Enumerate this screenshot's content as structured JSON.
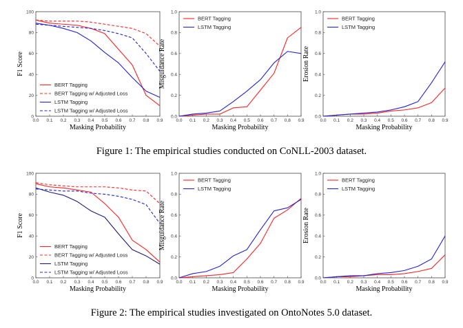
{
  "captions": [
    "Figure 1: The empirical studies conducted on CoNLL-2003 dataset.",
    "Figure 2: The empirical studies investigated on OntoNotes 5.0 dataset."
  ],
  "colors": {
    "bert": "#ff2020",
    "lstm": "#2020dd",
    "lstm_f2": "#1a1a7a"
  },
  "chart_data": [
    {
      "type": "line",
      "figure": 1,
      "panel": "f1",
      "xlabel": "Masking Probability",
      "ylabel": "F1 Score",
      "xlim": [
        0,
        0.9
      ],
      "ylim": [
        0,
        100
      ],
      "xticks": [
        0.0,
        0.1,
        0.2,
        0.3,
        0.4,
        0.5,
        0.6,
        0.7,
        0.8,
        0.9
      ],
      "yticks": [
        0,
        20,
        40,
        60,
        80,
        100
      ],
      "x": [
        0.0,
        0.1,
        0.2,
        0.3,
        0.4,
        0.5,
        0.6,
        0.7,
        0.8,
        0.9
      ],
      "legend": "bottom-left",
      "series": [
        {
          "name": "BERT Tagging",
          "color": "bert",
          "dash": false,
          "values": [
            92,
            89,
            88,
            87,
            84,
            79,
            64,
            49,
            20,
            10
          ]
        },
        {
          "name": "BERT Tagging w/ Adjusted Loss",
          "color": "bert",
          "dash": true,
          "values": [
            92,
            91,
            91,
            91,
            90,
            88,
            86,
            84,
            79,
            67
          ]
        },
        {
          "name": "LSTM Tagging",
          "color": "lstm",
          "dash": false,
          "values": [
            89,
            87,
            84,
            80,
            72,
            61,
            51,
            37,
            24,
            18
          ]
        },
        {
          "name": "LSTM Tagging w/ Adjusted Loss",
          "color": "lstm",
          "dash": true,
          "values": [
            88,
            87,
            86,
            85,
            84,
            82,
            79,
            75,
            60,
            43
          ]
        }
      ]
    },
    {
      "type": "line",
      "figure": 1,
      "panel": "misguidance",
      "xlabel": "Masking Probability",
      "ylabel": "Misguidance Rate",
      "xlim": [
        0,
        0.9
      ],
      "ylim": [
        0,
        1.0
      ],
      "xticks": [
        0.0,
        0.1,
        0.2,
        0.3,
        0.4,
        0.5,
        0.6,
        0.7,
        0.8,
        0.9
      ],
      "yticks": [
        0.0,
        0.2,
        0.4,
        0.6,
        0.8,
        1.0
      ],
      "x": [
        0.0,
        0.1,
        0.2,
        0.3,
        0.4,
        0.5,
        0.6,
        0.7,
        0.8,
        0.9
      ],
      "legend": "top-left",
      "series": [
        {
          "name": "BERT Tagging",
          "color": "bert",
          "dash": false,
          "values": [
            0.0,
            0.01,
            0.02,
            0.02,
            0.08,
            0.09,
            0.25,
            0.41,
            0.75,
            0.85
          ]
        },
        {
          "name": "LSTM Tagging",
          "color": "lstm",
          "dash": false,
          "values": [
            0.0,
            0.02,
            0.03,
            0.05,
            0.14,
            0.24,
            0.35,
            0.51,
            0.62,
            0.6
          ]
        }
      ]
    },
    {
      "type": "line",
      "figure": 1,
      "panel": "erosion",
      "xlabel": "Masking Probability",
      "ylabel": "Erosion Rate",
      "xlim": [
        0,
        0.9
      ],
      "ylim": [
        0,
        1.0
      ],
      "xticks": [
        0.0,
        0.1,
        0.2,
        0.3,
        0.4,
        0.5,
        0.6,
        0.7,
        0.8,
        0.9
      ],
      "yticks": [
        0.0,
        0.2,
        0.4,
        0.6,
        0.8,
        1.0
      ],
      "x": [
        0.0,
        0.1,
        0.2,
        0.3,
        0.4,
        0.5,
        0.6,
        0.7,
        0.8,
        0.9
      ],
      "legend": "top-left",
      "series": [
        {
          "name": "BERT Tagging",
          "color": "bert",
          "dash": false,
          "values": [
            0.0,
            0.01,
            0.02,
            0.02,
            0.03,
            0.05,
            0.06,
            0.08,
            0.13,
            0.27
          ]
        },
        {
          "name": "LSTM Tagging",
          "color": "lstm",
          "dash": false,
          "values": [
            0.0,
            0.01,
            0.02,
            0.03,
            0.04,
            0.06,
            0.09,
            0.14,
            0.32,
            0.52
          ]
        }
      ]
    },
    {
      "type": "line",
      "figure": 2,
      "panel": "f1",
      "xlabel": "Masking Probability",
      "ylabel": "F1 Score",
      "xlim": [
        0,
        0.9
      ],
      "ylim": [
        0,
        100
      ],
      "xticks": [
        0.0,
        0.1,
        0.2,
        0.3,
        0.4,
        0.5,
        0.6,
        0.7,
        0.8,
        0.9
      ],
      "yticks": [
        0,
        20,
        40,
        60,
        80,
        100
      ],
      "x": [
        0.0,
        0.1,
        0.2,
        0.3,
        0.4,
        0.5,
        0.6,
        0.7,
        0.8,
        0.9
      ],
      "legend": "bottom-left",
      "series": [
        {
          "name": "BERT Tagging",
          "color": "bert",
          "dash": false,
          "values": [
            90,
            87,
            86,
            84,
            82,
            71,
            58,
            36,
            27,
            15
          ]
        },
        {
          "name": "BERT Tagging w/ Adjusted Loss",
          "color": "bert",
          "dash": true,
          "values": [
            91,
            89,
            88,
            87,
            87,
            87,
            86,
            84,
            83,
            71
          ]
        },
        {
          "name": "LSTM Tagging",
          "color": "lstm_f2",
          "dash": false,
          "values": [
            86,
            82,
            79,
            73,
            64,
            58,
            42,
            27,
            21,
            13
          ]
        },
        {
          "name": "LSTM Tagging w/ Adjusted Loss",
          "color": "lstm",
          "dash": true,
          "values": [
            85,
            84,
            83,
            83,
            81,
            80,
            78,
            75,
            70,
            52
          ]
        }
      ]
    },
    {
      "type": "line",
      "figure": 2,
      "panel": "misguidance",
      "xlabel": "Masking Probability",
      "ylabel": "Misguidance Rate",
      "xlim": [
        0,
        0.9
      ],
      "ylim": [
        0,
        1.0
      ],
      "xticks": [
        0.0,
        0.1,
        0.2,
        0.3,
        0.4,
        0.5,
        0.6,
        0.7,
        0.8,
        0.9
      ],
      "yticks": [
        0.0,
        0.2,
        0.4,
        0.6,
        0.8,
        1.0
      ],
      "x": [
        0.0,
        0.1,
        0.2,
        0.3,
        0.4,
        0.5,
        0.6,
        0.7,
        0.8,
        0.9
      ],
      "legend": "top-left",
      "series": [
        {
          "name": "BERT Tagging",
          "color": "bert",
          "dash": false,
          "values": [
            0.0,
            0.01,
            0.02,
            0.03,
            0.05,
            0.18,
            0.33,
            0.57,
            0.65,
            0.76
          ]
        },
        {
          "name": "LSTM Tagging",
          "color": "lstm",
          "dash": false,
          "values": [
            0.0,
            0.04,
            0.06,
            0.11,
            0.21,
            0.27,
            0.46,
            0.64,
            0.67,
            0.75
          ]
        }
      ]
    },
    {
      "type": "line",
      "figure": 2,
      "panel": "erosion",
      "xlabel": "Masking Probability",
      "ylabel": "Erosion Rate",
      "xlim": [
        0,
        0.9
      ],
      "ylim": [
        0,
        1.0
      ],
      "xticks": [
        0.0,
        0.1,
        0.2,
        0.3,
        0.4,
        0.5,
        0.6,
        0.7,
        0.8,
        0.9
      ],
      "yticks": [
        0.0,
        0.2,
        0.4,
        0.6,
        0.8,
        1.0
      ],
      "x": [
        0.0,
        0.1,
        0.2,
        0.3,
        0.4,
        0.5,
        0.6,
        0.7,
        0.8,
        0.9
      ],
      "legend": "top-left",
      "series": [
        {
          "name": "BERT Tagging",
          "color": "bert",
          "dash": false,
          "values": [
            0.0,
            0.01,
            0.01,
            0.02,
            0.03,
            0.03,
            0.04,
            0.06,
            0.09,
            0.22
          ]
        },
        {
          "name": "LSTM Tagging",
          "color": "lstm",
          "dash": false,
          "values": [
            0.0,
            0.01,
            0.02,
            0.02,
            0.04,
            0.05,
            0.07,
            0.11,
            0.18,
            0.4
          ]
        }
      ]
    }
  ]
}
